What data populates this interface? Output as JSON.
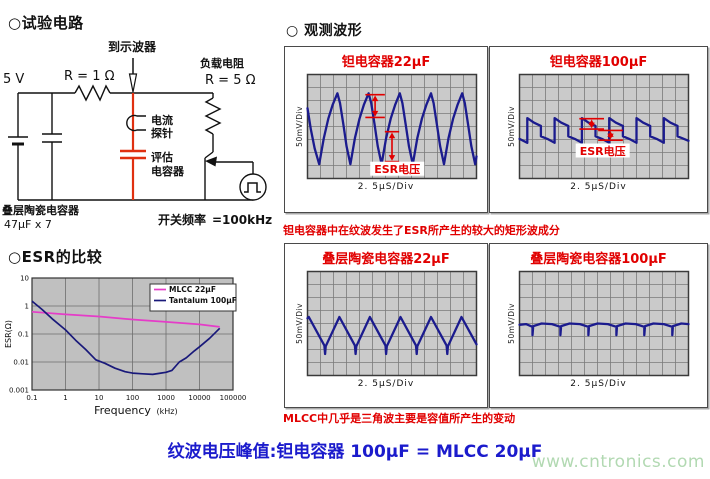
{
  "page": {
    "test_circuit_title": "○试验电路",
    "esr_title": "○ESR的比较",
    "waveforms_title": "○ 观测波形",
    "tantalum_note": "钽电容器中在纹波发生了ESR所产生的较大的矩形波成分",
    "mlcc_note": "MLCC中几乎是三角波主要是容值所产生的变动",
    "conclusion": "纹波电压峰值:钽电容器 100μF = MLCC 20μF",
    "watermark": "www.cntronics.com"
  },
  "colors": {
    "red": "#e10000",
    "blue_text": "#1b1bcc",
    "waveform_navy": "#1b1b8e",
    "scope_bg": "#cacaca",
    "scope_grid_line": "#7a7a7a",
    "chart_bg": "#c0c0c0",
    "mlcc_magenta": "#e53cc8",
    "tantalum_navy": "#19197a",
    "watermark_green": "#b2d9b2"
  },
  "circuit": {
    "to_oscilloscope": "到示波器",
    "supply_voltage": "5 V",
    "series_resistor": "R = 1 Ω",
    "load_resistor_label": "负载电阻",
    "load_resistor_value": "R = 5 Ω",
    "current_probe_line1": "电流",
    "current_probe_line2": "探针",
    "eval_cap_line1": "评估",
    "eval_cap_line2": "电容器",
    "input_cap_line1": "叠层陶瓷电容器",
    "input_cap_line2": "47μF x 7",
    "switching_freq_label": "开关频率",
    "switching_freq_value": "=100kHz"
  },
  "chart_data": [
    {
      "id": "esr-comparison",
      "type": "line",
      "log_x": true,
      "log_y": true,
      "xlabel": "Frequency",
      "xlabel_unit": "(kHz)",
      "ylabel": "ESR(Ω)",
      "xlim": [
        0.1,
        100000
      ],
      "ylim": [
        0.001,
        10
      ],
      "x_ticks": [
        "0.1",
        "1",
        "10",
        "100",
        "1000",
        "10000",
        "100000"
      ],
      "y_ticks": [
        "10",
        "1",
        "0.1",
        "0.01",
        "0.001"
      ],
      "grid": true,
      "legend_position": "top-right",
      "series": [
        {
          "name": "MLCC 22μF",
          "color": "#e53cc8",
          "x": [
            0.1,
            1,
            10,
            100,
            1000,
            10000,
            40000
          ],
          "y": [
            0.62,
            0.5,
            0.42,
            0.33,
            0.27,
            0.22,
            0.18
          ]
        },
        {
          "name": "Tantalum 100μF",
          "color": "#19197a",
          "x": [
            0.1,
            0.2,
            0.4,
            1,
            2,
            4,
            8,
            15,
            30,
            60,
            100,
            200,
            400,
            700,
            1000,
            1500,
            2500,
            4000,
            7000,
            10000,
            20000,
            40000
          ],
          "y": [
            1.5,
            0.75,
            0.35,
            0.14,
            0.06,
            0.028,
            0.012,
            0.009,
            0.006,
            0.0045,
            0.004,
            0.0038,
            0.0036,
            0.004,
            0.0043,
            0.005,
            0.01,
            0.014,
            0.025,
            0.035,
            0.07,
            0.16
          ]
        }
      ]
    },
    {
      "id": "tantalum-22uf",
      "type": "oscilloscope",
      "title": "钽电容器22μF",
      "y_label": "50mV/Div",
      "x_label": "2. 5μS/Div",
      "esr_label": "ESR电压",
      "esr_label_pos": {
        "x": 6.9,
        "y": 7.4
      },
      "grid_cols": 13,
      "grid_rows": 8,
      "annotations": [
        {
          "x": 5.2,
          "y1": 1.55,
          "y2": 3.3,
          "bar": 1.5
        },
        {
          "x": 6.5,
          "y1": 4.4,
          "y2": 6.7,
          "bar": 1.1
        }
      ],
      "points": [
        [
          0,
          2.6
        ],
        [
          0.25,
          4.2
        ],
        [
          0.55,
          5.7
        ],
        [
          0.9,
          6.9
        ],
        [
          1.25,
          4.9
        ],
        [
          1.6,
          3.4
        ],
        [
          1.95,
          2.3
        ],
        [
          2.3,
          1.45
        ],
        [
          2.5,
          2.2
        ],
        [
          2.75,
          3.8
        ],
        [
          3.0,
          5.5
        ],
        [
          3.3,
          6.9
        ],
        [
          3.65,
          4.9
        ],
        [
          4.0,
          3.4
        ],
        [
          4.35,
          2.3
        ],
        [
          4.7,
          1.45
        ],
        [
          4.9,
          2.2
        ],
        [
          5.15,
          3.8
        ],
        [
          5.4,
          5.5
        ],
        [
          5.7,
          6.9
        ],
        [
          6.05,
          4.9
        ],
        [
          6.4,
          3.4
        ],
        [
          6.75,
          2.3
        ],
        [
          7.1,
          1.45
        ],
        [
          7.3,
          2.2
        ],
        [
          7.55,
          3.8
        ],
        [
          7.8,
          5.5
        ],
        [
          8.1,
          6.9
        ],
        [
          8.45,
          4.9
        ],
        [
          8.8,
          3.4
        ],
        [
          9.15,
          2.3
        ],
        [
          9.5,
          1.45
        ],
        [
          9.7,
          2.2
        ],
        [
          9.95,
          3.8
        ],
        [
          10.2,
          5.5
        ],
        [
          10.5,
          6.9
        ],
        [
          10.85,
          4.9
        ],
        [
          11.2,
          3.4
        ],
        [
          11.55,
          2.3
        ],
        [
          11.9,
          1.45
        ],
        [
          12.1,
          2.2
        ],
        [
          12.35,
          3.8
        ],
        [
          12.6,
          5.5
        ],
        [
          12.9,
          6.9
        ],
        [
          13,
          6.3
        ]
      ]
    },
    {
      "id": "tantalum-100uf",
      "type": "oscilloscope",
      "title": "钽电容器100μF",
      "y_label": "50mV/Div",
      "x_label": "2. 5μS/Div",
      "esr_label": "ESR电压",
      "esr_label_pos": {
        "x": 6.4,
        "y": 6.0
      },
      "grid_cols": 13,
      "grid_rows": 8,
      "annotations": [
        {
          "x": 5.55,
          "y1": 3.4,
          "y2": 4.2,
          "bar": 1.9
        },
        {
          "x": 7.0,
          "y1": 4.3,
          "y2": 5.05,
          "bar": 1.9
        }
      ],
      "points": [
        [
          0,
          4.95
        ],
        [
          0.6,
          5.25
        ],
        [
          0.6,
          3.35
        ],
        [
          1.1,
          3.7
        ],
        [
          1.65,
          3.95
        ],
        [
          1.65,
          4.75
        ],
        [
          2.15,
          4.95
        ],
        [
          2.7,
          5.25
        ],
        [
          2.7,
          3.35
        ],
        [
          3.2,
          3.7
        ],
        [
          3.75,
          3.95
        ],
        [
          3.75,
          4.75
        ],
        [
          4.25,
          4.95
        ],
        [
          4.8,
          5.25
        ],
        [
          4.8,
          3.35
        ],
        [
          5.3,
          3.7
        ],
        [
          5.85,
          3.95
        ],
        [
          5.85,
          4.75
        ],
        [
          6.35,
          4.95
        ],
        [
          6.9,
          5.25
        ],
        [
          6.9,
          3.35
        ],
        [
          7.4,
          3.7
        ],
        [
          7.95,
          3.95
        ],
        [
          7.95,
          4.75
        ],
        [
          8.45,
          4.95
        ],
        [
          9.0,
          5.25
        ],
        [
          9.0,
          3.35
        ],
        [
          9.5,
          3.7
        ],
        [
          10.05,
          3.95
        ],
        [
          10.05,
          4.75
        ],
        [
          10.55,
          4.95
        ],
        [
          11.1,
          5.25
        ],
        [
          11.1,
          3.35
        ],
        [
          11.6,
          3.7
        ],
        [
          12.15,
          3.95
        ],
        [
          12.15,
          4.75
        ],
        [
          12.65,
          4.95
        ],
        [
          13,
          5.1
        ]
      ]
    },
    {
      "id": "mlcc-22uf",
      "type": "oscilloscope",
      "title": "叠层陶瓷电容器22μF",
      "y_label": "50mV/Div",
      "x_label": "2. 5μS/Div",
      "esr_label": null,
      "grid_cols": 13,
      "grid_rows": 8,
      "annotations": [],
      "points": [
        [
          0,
          3.6
        ],
        [
          0.1,
          3.5
        ],
        [
          1.3,
          5.7
        ],
        [
          1.35,
          6.35
        ],
        [
          1.4,
          5.75
        ],
        [
          2.45,
          3.5
        ],
        [
          3.65,
          5.7
        ],
        [
          3.7,
          6.35
        ],
        [
          3.75,
          5.75
        ],
        [
          4.8,
          3.5
        ],
        [
          6.0,
          5.7
        ],
        [
          6.05,
          6.35
        ],
        [
          6.1,
          5.75
        ],
        [
          7.15,
          3.5
        ],
        [
          8.35,
          5.7
        ],
        [
          8.4,
          6.35
        ],
        [
          8.45,
          5.75
        ],
        [
          9.5,
          3.5
        ],
        [
          10.7,
          5.7
        ],
        [
          10.75,
          6.35
        ],
        [
          10.8,
          5.75
        ],
        [
          11.85,
          3.5
        ],
        [
          13,
          5.6
        ]
      ]
    },
    {
      "id": "mlcc-100uf",
      "type": "oscilloscope",
      "title": "叠层陶瓷电容器100μF",
      "y_label": "50mV/Div",
      "x_label": "2. 5μS/Div",
      "esr_label": null,
      "grid_cols": 13,
      "grid_rows": 8,
      "annotations": [],
      "points": [
        [
          0,
          4.1
        ],
        [
          0.5,
          4.05
        ],
        [
          1.0,
          4.25
        ],
        [
          1.0,
          4.9
        ],
        [
          1.05,
          4.2
        ],
        [
          1.7,
          4.0
        ],
        [
          2.5,
          4.05
        ],
        [
          3.15,
          4.25
        ],
        [
          3.15,
          4.9
        ],
        [
          3.2,
          4.2
        ],
        [
          3.85,
          4.0
        ],
        [
          4.65,
          4.05
        ],
        [
          5.3,
          4.25
        ],
        [
          5.3,
          4.9
        ],
        [
          5.35,
          4.2
        ],
        [
          6.0,
          4.0
        ],
        [
          6.8,
          4.05
        ],
        [
          7.45,
          4.25
        ],
        [
          7.45,
          4.9
        ],
        [
          7.5,
          4.2
        ],
        [
          8.15,
          4.0
        ],
        [
          8.95,
          4.05
        ],
        [
          9.6,
          4.25
        ],
        [
          9.6,
          4.9
        ],
        [
          9.65,
          4.2
        ],
        [
          10.3,
          4.0
        ],
        [
          11.1,
          4.05
        ],
        [
          11.75,
          4.25
        ],
        [
          11.75,
          4.9
        ],
        [
          11.8,
          4.2
        ],
        [
          12.45,
          4.0
        ],
        [
          13,
          4.05
        ]
      ]
    }
  ]
}
